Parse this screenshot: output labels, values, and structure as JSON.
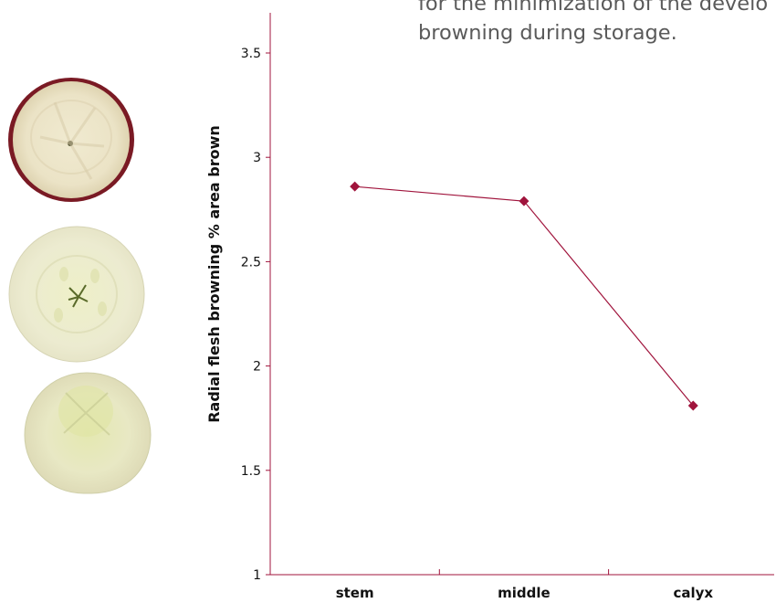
{
  "body_text": {
    "line1": "for the minimization of the develo",
    "line2": "browning during storage."
  },
  "chart_data": {
    "type": "line",
    "categories": [
      "stem",
      "middle",
      "calyx"
    ],
    "series": [
      {
        "values": [
          2.86,
          2.79,
          1.81
        ]
      }
    ],
    "title": "",
    "xlabel": "",
    "ylabel": "Radial flesh browning % area brown",
    "ylim": [
      1,
      3.5
    ],
    "yticks": [
      "1",
      "1.5",
      "2",
      "2.5",
      "3",
      "3.5"
    ],
    "grid": false,
    "legend": "none",
    "colors": {
      "series": "#a0143c",
      "axis": "#a0143c"
    }
  },
  "images": [
    {
      "name": "apple-slice-stem",
      "description_icon": "apple-slice-red-skin"
    },
    {
      "name": "apple-slice-middle",
      "description_icon": "apple-slice-core"
    },
    {
      "name": "apple-slice-calyx",
      "description_icon": "apple-slice-calyx"
    }
  ]
}
